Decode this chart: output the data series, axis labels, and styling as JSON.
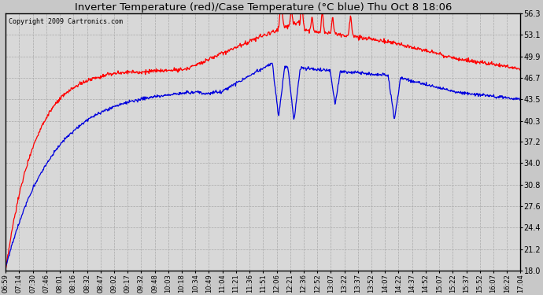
{
  "title": "Inverter Temperature (red)/Case Temperature (°C blue) Thu Oct 8 18:06",
  "copyright": "Copyright 2009 Cartronics.com",
  "yticks": [
    18.0,
    21.2,
    24.4,
    27.6,
    30.8,
    34.0,
    37.2,
    40.3,
    43.5,
    46.7,
    49.9,
    53.1,
    56.3
  ],
  "xtick_labels": [
    "06:59",
    "07:14",
    "07:30",
    "07:46",
    "08:01",
    "08:16",
    "08:32",
    "08:47",
    "09:02",
    "09:17",
    "09:32",
    "09:48",
    "10:03",
    "10:18",
    "10:34",
    "10:49",
    "11:04",
    "11:21",
    "11:36",
    "11:51",
    "12:06",
    "12:21",
    "12:36",
    "12:52",
    "13:07",
    "13:22",
    "13:37",
    "13:52",
    "14:07",
    "14:22",
    "14:37",
    "14:52",
    "15:07",
    "15:22",
    "15:37",
    "15:52",
    "16:07",
    "16:22",
    "17:04"
  ],
  "bg_color": "#c8c8c8",
  "plot_bg_color": "#d8d8d8",
  "grid_color": "#bbbbbb",
  "line_color_red": "#ff0000",
  "line_color_blue": "#0000dd",
  "ymin": 18.0,
  "ymax": 56.3
}
